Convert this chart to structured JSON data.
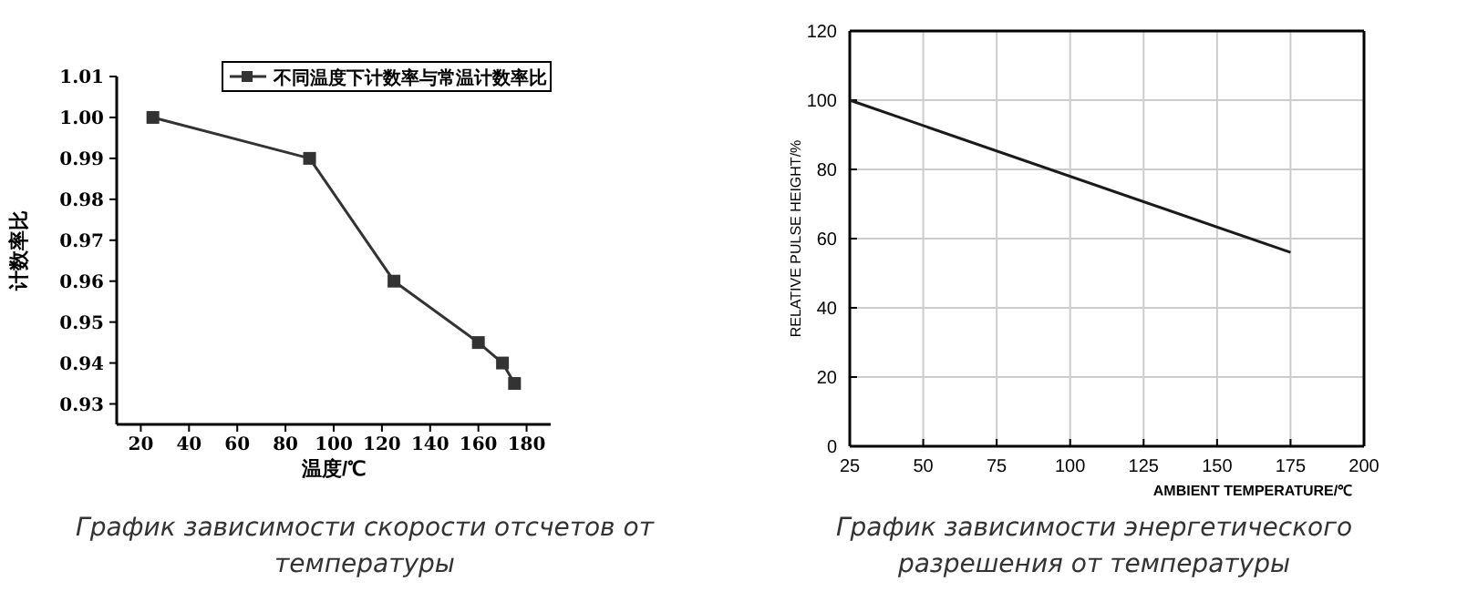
{
  "chart_data": [
    {
      "type": "line",
      "xlabel": "温度/℃",
      "ylabel": "计数率比",
      "xlim": [
        10,
        190
      ],
      "xticks": [
        20,
        40,
        60,
        80,
        100,
        120,
        140,
        160,
        180
      ],
      "ylim": [
        0.925,
        1.01
      ],
      "yticks": [
        0.93,
        0.94,
        0.95,
        0.96,
        0.97,
        0.98,
        0.99,
        {
          "value": 1,
          "label": "1.00"
        },
        1.01
      ],
      "marker": "square",
      "legend": "top right",
      "grid": false,
      "series": [
        {
          "name": "不同温度下计数率与常温计数率比",
          "color": "#333333",
          "x": [
            25,
            90,
            125,
            160,
            170,
            175
          ],
          "values": [
            1.0,
            0.99,
            0.96,
            0.945,
            0.94,
            0.935
          ]
        }
      ],
      "annotations": [
        "График зависимости скорости отсчетов от температуры"
      ]
    },
    {
      "type": "line",
      "xlabel": "AMBIENT TEMPERATURE/℃",
      "ylabel": "RELATIVE PULSE HEIGHT/%",
      "xlim": [
        25,
        200
      ],
      "xticks": [
        25,
        50,
        75,
        100,
        125,
        150,
        175,
        200
      ],
      "ylim": [
        0,
        120
      ],
      "yticks": [
        0,
        20,
        40,
        60,
        80,
        100,
        120
      ],
      "grid": true,
      "series": [
        {
          "color": "#1a1a1a",
          "x": [
            25,
            175
          ],
          "values": [
            100,
            56
          ]
        }
      ],
      "annotations": [
        "График зависимости энергетического разрешения от температуры"
      ]
    }
  ]
}
